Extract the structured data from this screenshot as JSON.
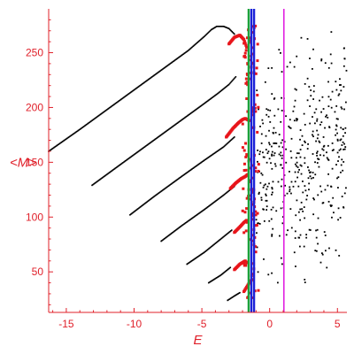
{
  "chart_data": {
    "type": "scatter",
    "title": "",
    "xlabel": "E",
    "ylabel": "<M>",
    "xlim": [
      -16.3,
      5.7
    ],
    "ylim": [
      13,
      290
    ],
    "x_ticks": [
      -15,
      -10,
      -5,
      0,
      5
    ],
    "y_ticks": [
      50,
      100,
      150,
      200,
      250
    ],
    "grid": false,
    "legend": "none",
    "colors": {
      "axis": "#e0202a",
      "tick_text": "#e0202a",
      "black_points": "#000000",
      "red_points": "#e8151b",
      "vline_blue": "#1a22d8",
      "vline_green": "#1aa13a",
      "vline_magenta": "#e020e0"
    },
    "vertical_lines": [
      {
        "x": -1.55,
        "color": "#1aa13a"
      },
      {
        "x": -1.35,
        "color": "#1a22d8"
      },
      {
        "x": -1.15,
        "color": "#1a22d8"
      },
      {
        "x": 1.05,
        "color": "#e020e0"
      }
    ],
    "black_branches": [
      {
        "x": [
          -16.3,
          -14.0,
          -12.0,
          -10.0,
          -8.0,
          -6.0,
          -4.8,
          -4.3,
          -3.9,
          -3.4,
          -3.0,
          -2.6
        ],
        "y": [
          160,
          180,
          198,
          216,
          234,
          252,
          265,
          271,
          274,
          274,
          272,
          267
        ]
      },
      {
        "x": [
          -13.1,
          -11.0,
          -9.0,
          -7.0,
          -5.0,
          -3.8,
          -3.0,
          -2.5
        ],
        "y": [
          129,
          148,
          166,
          184,
          202,
          213,
          221,
          228
        ]
      },
      {
        "x": [
          -10.3,
          -8.5,
          -6.5,
          -4.8,
          -3.4,
          -2.6
        ],
        "y": [
          102,
          119,
          137,
          152,
          164,
          173
        ]
      },
      {
        "x": [
          -8.0,
          -6.5,
          -4.8,
          -3.4,
          -2.6
        ],
        "y": [
          78,
          92,
          107,
          120,
          128
        ]
      },
      {
        "x": [
          -6.1,
          -4.8,
          -3.6,
          -2.8
        ],
        "y": [
          57,
          68,
          80,
          88
        ]
      },
      {
        "x": [
          -4.5,
          -3.6,
          -2.9
        ],
        "y": [
          40,
          47,
          54
        ]
      },
      {
        "x": [
          -3.1,
          -2.6,
          -2.2
        ],
        "y": [
          24,
          28,
          31
        ]
      }
    ],
    "red_branches": [
      {
        "x": [
          -3.0,
          -2.6,
          -2.2,
          -1.9,
          -1.7
        ],
        "y": [
          258,
          264,
          266,
          262,
          255
        ]
      },
      {
        "x": [
          -3.2,
          -2.7,
          -2.3,
          -2.0,
          -1.8,
          -1.5
        ],
        "y": [
          173,
          181,
          186,
          189,
          190,
          188
        ]
      },
      {
        "x": [
          -2.9,
          -2.5,
          -2.1,
          -1.8,
          -1.6
        ],
        "y": [
          126,
          131,
          135,
          137,
          139
        ]
      },
      {
        "x": [
          -2.6,
          -2.2,
          -1.9,
          -1.7
        ],
        "y": [
          86,
          91,
          95,
          97
        ]
      },
      {
        "x": [
          -2.6,
          -2.2,
          -1.8
        ],
        "y": [
          52,
          57,
          60
        ]
      },
      {
        "x": [
          -1.9,
          -1.7,
          -1.5,
          -1.3
        ],
        "y": [
          32,
          36,
          40,
          43
        ]
      }
    ],
    "scatter_region": {
      "x_range": [
        -1.0,
        5.7
      ],
      "y_range": [
        20,
        290
      ],
      "count": 430
    }
  }
}
